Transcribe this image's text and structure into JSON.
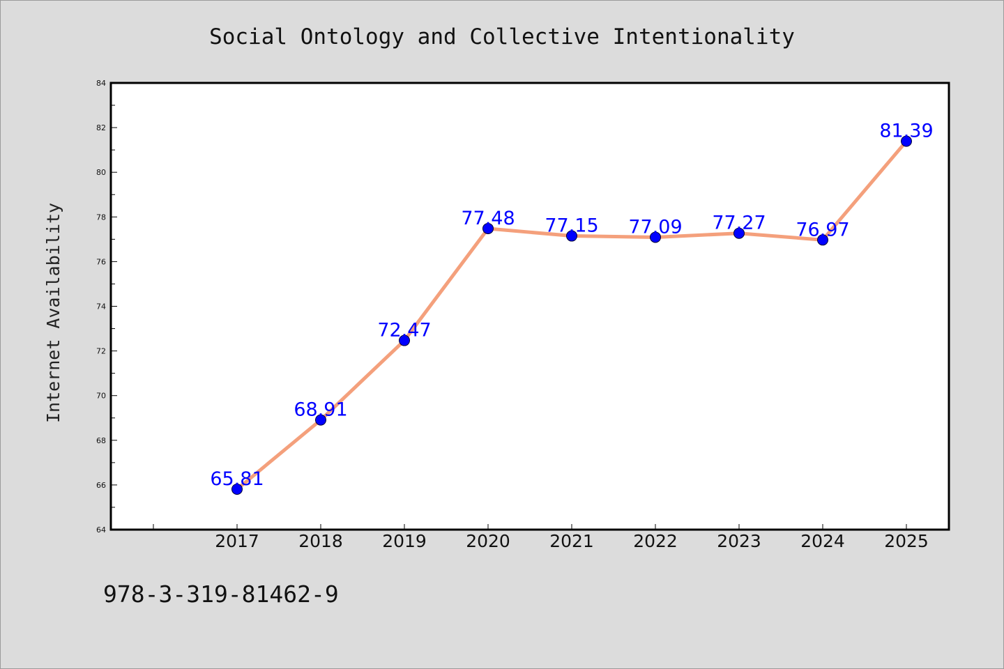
{
  "chart_data": {
    "type": "line",
    "title": "Social Ontology and Collective Intentionality",
    "ylabel": "Internet Availability",
    "xlabel": "",
    "categories": [
      "2017",
      "2018",
      "2019",
      "2020",
      "2021",
      "2022",
      "2023",
      "2024",
      "2025"
    ],
    "series": [
      {
        "values": [
          65.81,
          68.91,
          72.47,
          77.48,
          77.15,
          77.09,
          77.27,
          76.97,
          81.39
        ],
        "line_color": "#f4a07c",
        "marker_color": "#0000ff"
      }
    ],
    "data_labels": [
      "65.81",
      "68.91",
      "72.47",
      "77.48",
      "77.15",
      "77.09",
      "77.27",
      "76.97",
      "81.39"
    ],
    "ylim": [
      64,
      84
    ],
    "yticks": [
      "64",
      "66",
      "68",
      "70",
      "72",
      "74",
      "76",
      "78",
      "80",
      "82",
      "84"
    ],
    "grid": false,
    "label_color": "#0000ff"
  },
  "footnote": "978-3-319-81462-9"
}
